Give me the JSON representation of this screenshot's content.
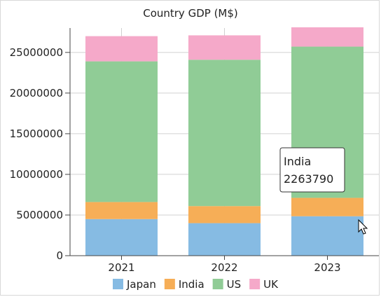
{
  "chart_data": {
    "type": "bar",
    "stacked": true,
    "title": "Country GDP (M$)",
    "xlabel": "",
    "ylabel": "",
    "categories": [
      "2021",
      "2022",
      "2023"
    ],
    "series": [
      {
        "name": "Japan",
        "color": "#86bbe3",
        "values": [
          4500000,
          4000000,
          4850000
        ]
      },
      {
        "name": "India",
        "color": "#f6ae57",
        "values": [
          2100000,
          2100000,
          2263790
        ]
      },
      {
        "name": "US",
        "color": "#90cc96",
        "values": [
          17300000,
          18000000,
          18600000
        ]
      },
      {
        "name": "UK",
        "color": "#f5a9c9",
        "values": [
          3100000,
          3000000,
          2800000
        ]
      }
    ],
    "ylim": [
      0,
      28000000
    ],
    "yticks": [
      0,
      5000000,
      10000000,
      15000000,
      20000000,
      25000000
    ],
    "grid": true,
    "legend_position": "bottom"
  },
  "tooltip": {
    "series": "India",
    "value": "2263790",
    "category_index": 2
  },
  "cursor": "arrow-pointer-icon"
}
